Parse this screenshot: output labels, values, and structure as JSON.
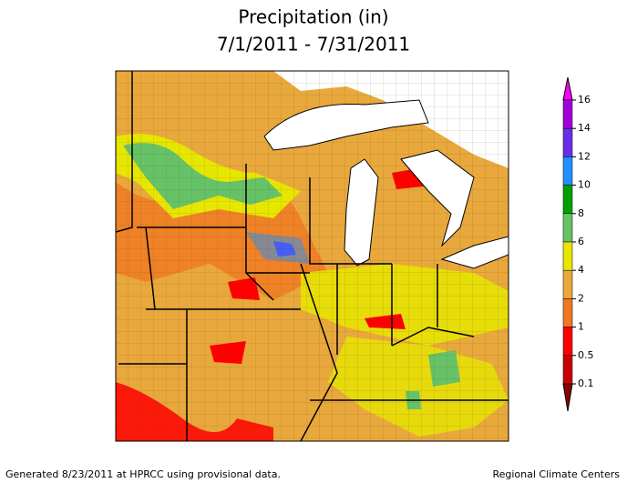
{
  "title": "Precipitation (in)",
  "subtitle": "7/1/2011 - 7/31/2011",
  "legend": {
    "ticks": [
      16,
      14,
      12,
      10,
      8,
      6,
      4,
      2,
      1,
      0.5,
      0.1
    ],
    "colors": [
      "#ff00ff",
      "#a000d8",
      "#6a2ee8",
      "#1e90ff",
      "#00a000",
      "#66c266",
      "#e6e600",
      "#e8a83c",
      "#f07820",
      "#ff0000",
      "#c80000",
      "#8c0000"
    ]
  },
  "footer": {
    "left": "Generated 8/23/2011 at HPRCC using provisional data.",
    "right": "Regional Climate Centers"
  }
}
